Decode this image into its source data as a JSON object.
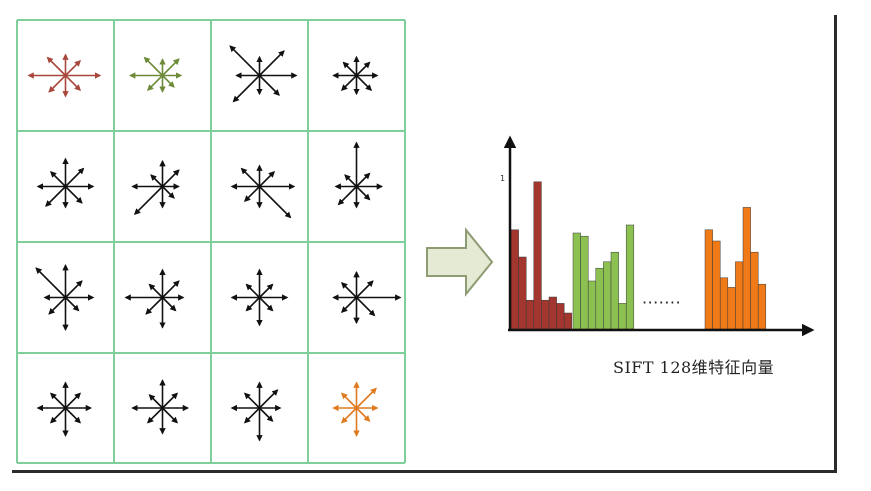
{
  "colors": {
    "grid_line": "#7fcf9a",
    "arrow_default": "#111111",
    "arrow_red": "#a8473c",
    "arrow_green": "#6c8a38",
    "arrow_orange": "#e07a1e",
    "bar_red": "#a3362f",
    "bar_green": "#8cc152",
    "bar_orange": "#f07a18",
    "transition_arrow_fill": "#e4ead3",
    "transition_arrow_stroke": "#8e9c74"
  },
  "grid": {
    "rows": 4,
    "cols": 4,
    "cells": [
      {
        "color": "red",
        "lengths": [
          0.75,
          0.45,
          0.45,
          0.55,
          0.8,
          0.5,
          0.45,
          0.45
        ]
      },
      {
        "color": "green",
        "lengths": [
          0.4,
          0.5,
          0.35,
          0.55,
          0.7,
          0.45,
          0.35,
          0.35
        ]
      },
      {
        "color": "default",
        "lengths": [
          0.8,
          0.75,
          0.4,
          0.9,
          0.5,
          0.8,
          0.4,
          0.6
        ]
      },
      {
        "color": "default",
        "lengths": [
          0.45,
          0.4,
          0.4,
          0.4,
          0.5,
          0.45,
          0.4,
          0.45
        ]
      },
      {
        "color": "default",
        "lengths": [
          0.6,
          0.55,
          0.6,
          0.45,
          0.6,
          0.6,
          0.45,
          0.5
        ]
      },
      {
        "color": "default",
        "lengths": [
          0.35,
          0.5,
          0.55,
          0.35,
          0.65,
          0.85,
          0.45,
          0.35
        ]
      },
      {
        "color": "default",
        "lengths": [
          0.75,
          0.45,
          0.45,
          0.55,
          0.6,
          0.45,
          0.45,
          0.95
        ]
      },
      {
        "color": "default",
        "lengths": [
          0.55,
          0.4,
          0.95,
          0.35,
          0.45,
          0.55,
          0.45,
          0.4
        ]
      },
      {
        "color": "default",
        "lengths": [
          0.6,
          0.5,
          0.7,
          0.9,
          0.45,
          0.5,
          0.7,
          0.4
        ]
      },
      {
        "color": "default",
        "lengths": [
          0.45,
          0.5,
          0.6,
          0.4,
          0.8,
          0.5,
          0.65,
          0.4
        ]
      },
      {
        "color": "default",
        "lengths": [
          0.6,
          0.4,
          0.6,
          0.4,
          0.6,
          0.4,
          0.6,
          0.4
        ]
      },
      {
        "color": "default",
        "lengths": [
          0.95,
          0.5,
          0.55,
          0.45,
          0.5,
          0.45,
          0.55,
          0.55
        ]
      },
      {
        "color": "default",
        "lengths": [
          0.55,
          0.45,
          0.55,
          0.45,
          0.6,
          0.45,
          0.6,
          0.45
        ]
      },
      {
        "color": "default",
        "lengths": [
          0.55,
          0.45,
          0.6,
          0.4,
          0.65,
          0.45,
          0.55,
          0.45
        ]
      },
      {
        "color": "default",
        "lengths": [
          0.45,
          0.55,
          0.55,
          0.45,
          0.6,
          0.45,
          0.7,
          0.4
        ]
      },
      {
        "color": "orange",
        "lengths": [
          0.45,
          0.6,
          0.55,
          0.45,
          0.5,
          0.45,
          0.6,
          0.4
        ]
      }
    ]
  },
  "histogram": {
    "y_tick_label": "1",
    "ellipsis": "·······",
    "groups": [
      {
        "color": "red",
        "values": [
          0.62,
          0.45,
          0.18,
          0.92,
          0.18,
          0.2,
          0.16,
          0.1
        ]
      },
      {
        "color": "green",
        "values": [
          0.6,
          0.58,
          0.3,
          0.38,
          0.42,
          0.48,
          0.16,
          0.65
        ]
      },
      {
        "color": "orange",
        "values": [
          0.62,
          0.55,
          0.32,
          0.26,
          0.42,
          0.76,
          0.48,
          0.28
        ]
      }
    ]
  },
  "caption": "SIFT 128维特征向量"
}
